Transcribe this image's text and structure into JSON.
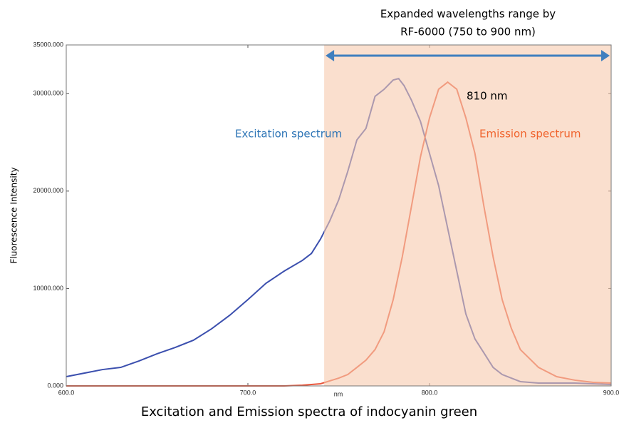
{
  "chart_data": {
    "type": "line",
    "caption": "Excitation and Emission spectra of indocyanin green",
    "x_label": "nm",
    "y_label": "Fluorescence Intensity",
    "xlim": [
      600,
      900
    ],
    "ylim": [
      0,
      35000
    ],
    "xticks": [
      {
        "value": 600,
        "label": "600.0"
      },
      {
        "value": 700,
        "label": "700.0"
      },
      {
        "value": 800,
        "label": "800.0"
      },
      {
        "value": 900,
        "label": "900.0"
      }
    ],
    "yticks": [
      {
        "value": 0,
        "label": "0.000"
      },
      {
        "value": 10000,
        "label": "10000.000"
      },
      {
        "value": 20000,
        "label": "20000.000"
      },
      {
        "value": 30000,
        "label": "30000.000"
      },
      {
        "value": 35000,
        "label": "35000.000"
      }
    ],
    "highlight_xlim": [
      742,
      900
    ],
    "highlight_color": "#f6c9ad",
    "annotations": {
      "range_line_1": "Expanded wavelengths range by",
      "range_line_2": "RF-6000 (750 to 900 nm)",
      "peak": "810 nm",
      "excitation_label": "Excitation spectrum",
      "emission_label": "Emission spectrum"
    },
    "series": [
      {
        "name": "Excitation spectrum",
        "color": "#3b4fae",
        "x": [
          600,
          620,
          630,
          640,
          650,
          660,
          670,
          680,
          690,
          700,
          710,
          720,
          730,
          735,
          740,
          745,
          750,
          755,
          760,
          765,
          770,
          775,
          780,
          783,
          786,
          790,
          795,
          800,
          805,
          810,
          815,
          820,
          825,
          830,
          835,
          840,
          850,
          860,
          880,
          900
        ],
        "values": [
          950,
          1680,
          1900,
          2560,
          3300,
          3950,
          4690,
          5860,
          7250,
          8860,
          10540,
          11790,
          12880,
          13600,
          15080,
          16910,
          19100,
          22030,
          25250,
          26430,
          29720,
          30450,
          31400,
          31550,
          30820,
          29350,
          27160,
          23860,
          20570,
          16180,
          11790,
          7390,
          4830,
          3370,
          1900,
          1170,
          440,
          290,
          290,
          150
        ]
      },
      {
        "name": "Emission spectrum",
        "color": "#e8553a",
        "x": [
          600,
          650,
          700,
          720,
          730,
          740,
          750,
          755,
          760,
          765,
          770,
          775,
          780,
          785,
          790,
          795,
          800,
          805,
          810,
          815,
          820,
          825,
          830,
          835,
          840,
          845,
          850,
          860,
          870,
          880,
          890,
          900
        ],
        "values": [
          0,
          0,
          0,
          0,
          70,
          220,
          800,
          1170,
          1900,
          2640,
          3730,
          5560,
          8860,
          13250,
          18370,
          23500,
          27520,
          30450,
          31180,
          30450,
          27520,
          23860,
          18370,
          13250,
          8860,
          5930,
          3730,
          1900,
          950,
          590,
          370,
          290
        ]
      }
    ]
  }
}
